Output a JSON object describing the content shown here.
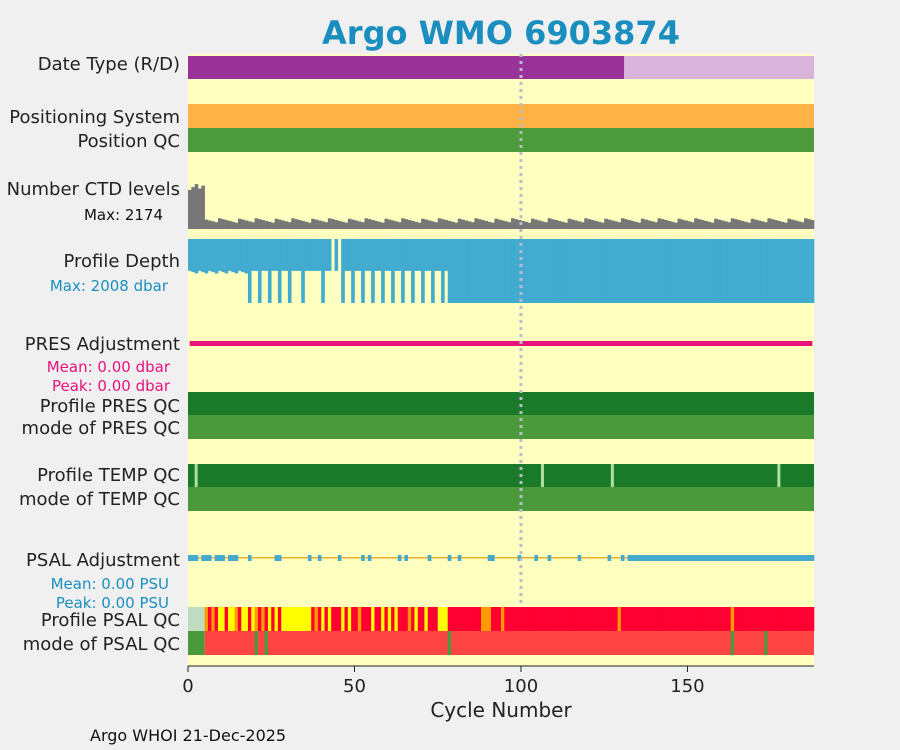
{
  "chart_data": {
    "type": "bar",
    "title": "Argo WMO 6903874",
    "xlabel": "Cycle Number",
    "xlim": [
      0,
      188
    ],
    "x_ticks": [
      "0",
      "50",
      "100",
      "150"
    ],
    "x_tick_values": [
      0,
      50,
      100,
      150
    ],
    "reference_cycle": 100,
    "footer": "Argo WHOI 21-Dec-2025",
    "colors": {
      "background": "#ffffc0",
      "title": "#1a8fbf",
      "data_type_delayed": "#993399",
      "data_type_realtime": "#d9b3d9",
      "positioning_system": "#ffb347",
      "position_qc": "#4c9a3c",
      "ctd_levels": "#777777",
      "profile_depth": "#42abd0",
      "pres_adjustment": "#e8127c",
      "qc_dark_green": "#1a7a2a",
      "qc_green": "#4a9a3c",
      "qc_light": "#b0e0a0",
      "psal_adjustment": "#44aad0",
      "psal_adjustment_line": "#e8b030",
      "psal_red": "#ff0033",
      "psal_yellow": "#ffff00",
      "psal_orange": "#ff9900",
      "psal_mode_red": "#ff4444",
      "psal_light": "#c0dcc0"
    },
    "rows": {
      "data_type": {
        "label": "Date Type (R/D)",
        "delayed_until_cycle": 131
      },
      "positioning_system": {
        "label": "Positioning System"
      },
      "position_qc": {
        "label": "Position QC"
      },
      "ctd_levels": {
        "label": "Number CTD levels",
        "max_label": "Max: 2174",
        "max": 2174,
        "high_cycles": [
          0,
          1,
          2,
          3,
          4
        ],
        "high_value": 1600,
        "typical_value": 300
      },
      "profile_depth": {
        "label": "Profile Depth",
        "max_label": "Max: 2008 dbar",
        "max": 2008,
        "shallow_value": 1000,
        "deep_value": 2008,
        "shallow_until_cycle": 78,
        "deep_cycles_early": [
          18,
          21,
          24,
          27,
          30,
          34,
          40,
          46,
          49,
          52,
          55,
          58,
          61,
          64,
          67,
          70,
          73,
          76
        ],
        "gap_cycles": [
          43,
          45
        ]
      },
      "pres_adjustment": {
        "label": "PRES Adjustment",
        "mean_label": "Mean: 0.00 dbar",
        "peak_label": "Peak: 0.00 dbar"
      },
      "profile_pres_qc": {
        "label": "Profile PRES QC"
      },
      "mode_pres_qc": {
        "label": "mode of PRES QC"
      },
      "profile_temp_qc": {
        "label": "Profile TEMP QC",
        "light_cycles": [
          2,
          106,
          127,
          177
        ]
      },
      "mode_temp_qc": {
        "label": "mode of TEMP QC"
      },
      "psal_adjustment": {
        "label": "PSAL Adjustment",
        "mean_label": "Mean: 0.00 PSU",
        "peak_label": "Peak: 0.00 PSU"
      },
      "profile_psal_qc": {
        "label": "Profile PSAL QC",
        "yellow_cycles": [
          9,
          10,
          12,
          13,
          16,
          17,
          19,
          24,
          26,
          28,
          29,
          30,
          31,
          32,
          33,
          34,
          35,
          36,
          40,
          42,
          46,
          48,
          55,
          58,
          60,
          62,
          68,
          71,
          75,
          76,
          77
        ],
        "orange_cycles": [
          5,
          7,
          14,
          20,
          22,
          38,
          51,
          66,
          88,
          89,
          90,
          94,
          129,
          163
        ]
      },
      "mode_psal_qc": {
        "label": "mode of PSAL QC",
        "green_cycles": [
          20,
          23,
          78,
          163,
          173
        ]
      }
    }
  }
}
